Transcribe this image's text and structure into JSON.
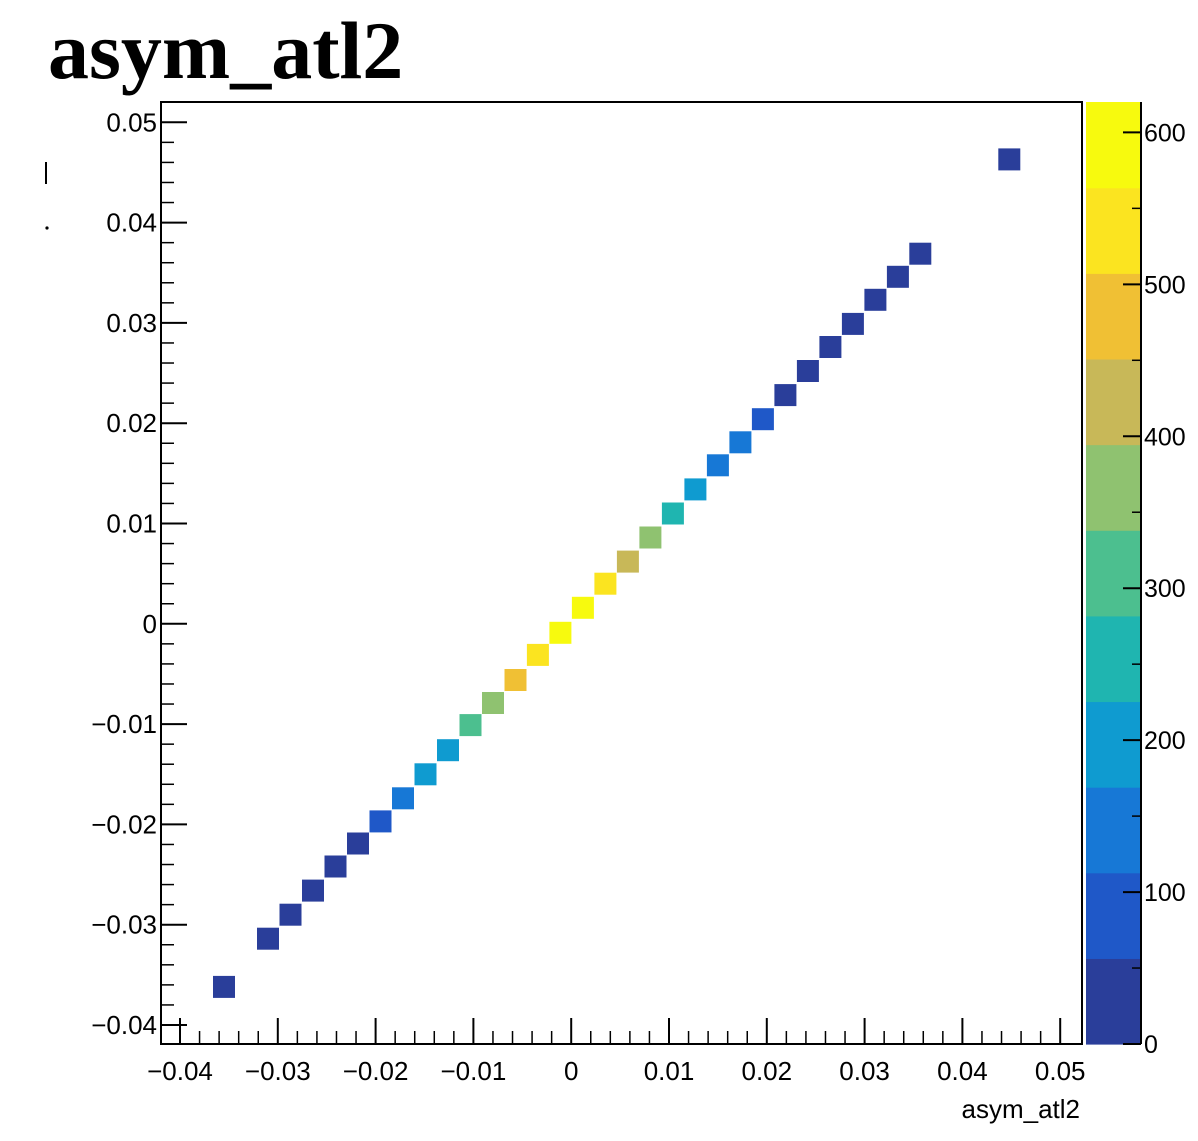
{
  "chart_data": {
    "type": "heatmap",
    "title": "asym_atl2",
    "xlabel": "asym_atl2",
    "ylabel": "",
    "xlim": [
      -0.04,
      0.05
    ],
    "ylim": [
      -0.04,
      0.05
    ],
    "x_ticks": [
      "−0.04",
      "−0.03",
      "−0.02",
      "−0.01",
      "0",
      "0.01",
      "0.02",
      "0.03",
      "0.04",
      "0.05"
    ],
    "y_ticks": [
      "−0.04",
      "−0.03",
      "−0.02",
      "−0.01",
      "0",
      "0.01",
      "0.02",
      "0.03",
      "0.04",
      "0.05"
    ],
    "colorbar": {
      "range": [
        0,
        620
      ],
      "ticks": [
        "0",
        "100",
        "200",
        "300",
        "400",
        "500",
        "600"
      ],
      "palette": [
        "#2a3e9a",
        "#1f58c8",
        "#1778d6",
        "#0f9bd0",
        "#1fb5b0",
        "#4cbf8f",
        "#8fc270",
        "#c8b858",
        "#f0c034",
        "#fbe420",
        "#f7fa0e"
      ]
    },
    "bins": [
      {
        "x": -0.0355,
        "y": -0.0362,
        "z": 15
      },
      {
        "x": -0.031,
        "y": -0.0314,
        "z": 20
      },
      {
        "x": -0.0287,
        "y": -0.029,
        "z": 25
      },
      {
        "x": -0.0264,
        "y": -0.0266,
        "z": 30
      },
      {
        "x": -0.0241,
        "y": -0.0242,
        "z": 40
      },
      {
        "x": -0.0218,
        "y": -0.0219,
        "z": 45
      },
      {
        "x": -0.0195,
        "y": -0.0197,
        "z": 90
      },
      {
        "x": -0.0172,
        "y": -0.0174,
        "z": 130
      },
      {
        "x": -0.0149,
        "y": -0.015,
        "z": 170
      },
      {
        "x": -0.0126,
        "y": -0.0126,
        "z": 210
      },
      {
        "x": -0.0103,
        "y": -0.0101,
        "z": 300
      },
      {
        "x": -0.008,
        "y": -0.0079,
        "z": 380
      },
      {
        "x": -0.0057,
        "y": -0.0056,
        "z": 460
      },
      {
        "x": -0.0034,
        "y": -0.0031,
        "z": 560
      },
      {
        "x": -0.0011,
        "y": -0.0009,
        "z": 610
      },
      {
        "x": 0.0012,
        "y": 0.0016,
        "z": 610
      },
      {
        "x": 0.0035,
        "y": 0.004,
        "z": 520
      },
      {
        "x": 0.0058,
        "y": 0.0062,
        "z": 440
      },
      {
        "x": 0.0081,
        "y": 0.0086,
        "z": 350
      },
      {
        "x": 0.0104,
        "y": 0.011,
        "z": 260
      },
      {
        "x": 0.0127,
        "y": 0.0134,
        "z": 200
      },
      {
        "x": 0.015,
        "y": 0.0158,
        "z": 150
      },
      {
        "x": 0.0173,
        "y": 0.0181,
        "z": 120
      },
      {
        "x": 0.0196,
        "y": 0.0204,
        "z": 80
      },
      {
        "x": 0.0219,
        "y": 0.0228,
        "z": 45
      },
      {
        "x": 0.0242,
        "y": 0.0252,
        "z": 50
      },
      {
        "x": 0.0265,
        "y": 0.0276,
        "z": 30
      },
      {
        "x": 0.0288,
        "y": 0.0299,
        "z": 25
      },
      {
        "x": 0.0311,
        "y": 0.0323,
        "z": 20
      },
      {
        "x": 0.0334,
        "y": 0.0346,
        "z": 20
      },
      {
        "x": 0.0357,
        "y": 0.0369,
        "z": 15
      },
      {
        "x": 0.0448,
        "y": 0.0463,
        "z": 15
      }
    ]
  }
}
